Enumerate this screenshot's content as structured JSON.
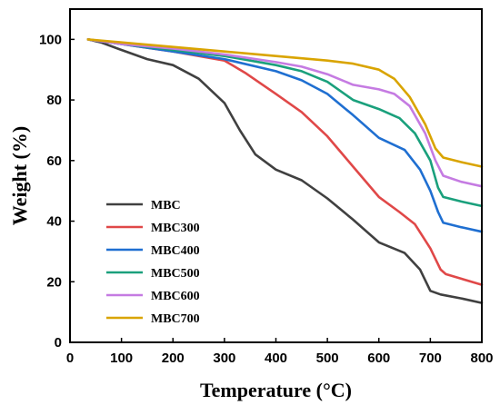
{
  "chart_data": {
    "type": "line",
    "xlabel": "Temperature (°C)",
    "ylabel": "Weight  (%)",
    "xlim": [
      0,
      800
    ],
    "ylim": [
      0,
      110
    ],
    "xticks": [
      0,
      100,
      200,
      300,
      400,
      500,
      600,
      700,
      800
    ],
    "yticks": [
      0,
      20,
      40,
      60,
      80,
      100
    ],
    "grid": false,
    "legend_position": "lower-left",
    "series": [
      {
        "name": "MBC",
        "color": "#404040",
        "x": [
          35,
          60,
          100,
          150,
          200,
          250,
          300,
          330,
          360,
          400,
          450,
          500,
          550,
          600,
          650,
          680,
          700,
          720,
          760,
          800
        ],
        "y": [
          100,
          99,
          96.5,
          93.5,
          91.5,
          87,
          79,
          70,
          62,
          57,
          53.5,
          47.5,
          40.5,
          33,
          29.5,
          24,
          17,
          15.8,
          14.5,
          13
        ]
      },
      {
        "name": "MBC300",
        "color": "#e04848",
        "x": [
          35,
          100,
          200,
          250,
          300,
          340,
          400,
          450,
          500,
          550,
          600,
          640,
          670,
          700,
          720,
          730,
          760,
          800
        ],
        "y": [
          100,
          98.5,
          96,
          94.5,
          93,
          89,
          82,
          76,
          68,
          58,
          48,
          43,
          39,
          31,
          24,
          22.5,
          21,
          19
        ]
      },
      {
        "name": "MBC400",
        "color": "#1f6fd1",
        "x": [
          35,
          100,
          200,
          300,
          400,
          450,
          500,
          550,
          600,
          650,
          680,
          700,
          715,
          725,
          760,
          800
        ],
        "y": [
          100,
          98.5,
          96,
          93.5,
          89.5,
          86.5,
          82,
          75,
          67.5,
          63.5,
          57,
          50,
          43,
          39.5,
          38,
          36.5
        ]
      },
      {
        "name": "MBC500",
        "color": "#1aa07c",
        "x": [
          35,
          100,
          200,
          300,
          400,
          450,
          500,
          550,
          600,
          640,
          670,
          700,
          715,
          725,
          760,
          800
        ],
        "y": [
          100,
          98.5,
          96.5,
          94.5,
          91.5,
          89.5,
          86,
          80,
          77,
          74,
          69,
          60,
          51,
          48,
          46.5,
          45
        ]
      },
      {
        "name": "MBC600",
        "color": "#c57be2",
        "x": [
          35,
          100,
          200,
          300,
          400,
          450,
          500,
          550,
          600,
          630,
          660,
          690,
          710,
          725,
          760,
          800
        ],
        "y": [
          100,
          98.5,
          97,
          95,
          92.5,
          91,
          88.5,
          85,
          83.5,
          82,
          78,
          69,
          60,
          55,
          53,
          51.5
        ]
      },
      {
        "name": "MBC700",
        "color": "#d9a400",
        "x": [
          35,
          100,
          200,
          300,
          400,
          500,
          550,
          600,
          630,
          660,
          690,
          710,
          725,
          760,
          800
        ],
        "y": [
          100,
          99,
          97.5,
          96,
          94.5,
          93,
          92,
          90,
          87,
          81,
          72,
          64,
          61,
          59.5,
          58
        ]
      }
    ]
  }
}
